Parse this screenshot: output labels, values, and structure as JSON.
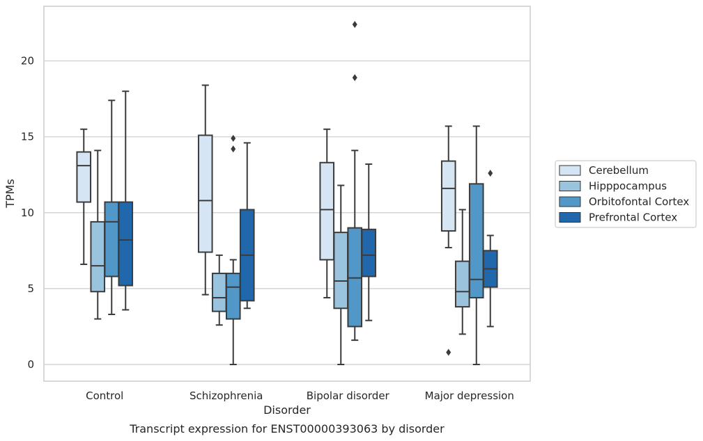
{
  "chart_data": {
    "type": "box",
    "caption": "Transcript expression for ENST00000393063 by disorder",
    "xlabel": "Disorder",
    "ylabel": "TPMs",
    "ylim": [
      -1.1,
      23.6
    ],
    "yticks": [
      0,
      5,
      10,
      15,
      20
    ],
    "grid": "horizontal",
    "legend_position": "right",
    "categories": [
      "Control",
      "Schizophrenia",
      "Bipolar disorder",
      "Major depression"
    ],
    "series": [
      {
        "name": "Cerebellum",
        "color": "#d6e5f4",
        "boxes": [
          {
            "whisker_low": 6.6,
            "q1": 10.7,
            "median": 13.1,
            "q3": 14.0,
            "whisker_high": 15.5,
            "outliers": []
          },
          {
            "whisker_low": 4.6,
            "q1": 7.4,
            "median": 10.8,
            "q3": 15.1,
            "whisker_high": 18.4,
            "outliers": []
          },
          {
            "whisker_low": 4.4,
            "q1": 6.9,
            "median": 10.2,
            "q3": 13.3,
            "whisker_high": 15.5,
            "outliers": []
          },
          {
            "whisker_low": 7.7,
            "q1": 8.8,
            "median": 11.6,
            "q3": 13.4,
            "whisker_high": 15.7,
            "outliers": [
              0.8
            ]
          }
        ]
      },
      {
        "name": "Hipppocampus",
        "color": "#9ac3de",
        "boxes": [
          {
            "whisker_low": 3.0,
            "q1": 4.8,
            "median": 6.5,
            "q3": 9.4,
            "whisker_high": 14.1,
            "outliers": []
          },
          {
            "whisker_low": 2.6,
            "q1": 3.5,
            "median": 4.4,
            "q3": 6.0,
            "whisker_high": 7.2,
            "outliers": []
          },
          {
            "whisker_low": 0.0,
            "q1": 3.7,
            "median": 5.5,
            "q3": 8.7,
            "whisker_high": 11.8,
            "outliers": []
          },
          {
            "whisker_low": 2.0,
            "q1": 3.8,
            "median": 4.8,
            "q3": 6.8,
            "whisker_high": 10.2,
            "outliers": []
          }
        ]
      },
      {
        "name": "Orbitofontal Cortex",
        "color": "#5197c8",
        "boxes": [
          {
            "whisker_low": 3.3,
            "q1": 5.8,
            "median": 9.4,
            "q3": 10.7,
            "whisker_high": 17.4,
            "outliers": []
          },
          {
            "whisker_low": 0.0,
            "q1": 3.0,
            "median": 5.1,
            "q3": 6.0,
            "whisker_high": 6.9,
            "outliers": [
              14.2,
              14.9
            ]
          },
          {
            "whisker_low": 1.6,
            "q1": 2.5,
            "median": 5.7,
            "q3": 9.0,
            "whisker_high": 14.1,
            "outliers": [
              18.9,
              22.4
            ]
          },
          {
            "whisker_low": 0.0,
            "q1": 4.4,
            "median": 5.6,
            "q3": 11.9,
            "whisker_high": 15.7,
            "outliers": []
          }
        ]
      },
      {
        "name": "Prefrontal Cortex",
        "color": "#2167ac",
        "boxes": [
          {
            "whisker_low": 3.6,
            "q1": 5.2,
            "median": 8.2,
            "q3": 10.7,
            "whisker_high": 18.0,
            "outliers": []
          },
          {
            "whisker_low": 3.7,
            "q1": 4.2,
            "median": 7.2,
            "q3": 10.2,
            "whisker_high": 14.6,
            "outliers": []
          },
          {
            "whisker_low": 2.9,
            "q1": 5.8,
            "median": 7.2,
            "q3": 8.9,
            "whisker_high": 13.2,
            "outliers": []
          },
          {
            "whisker_low": 2.5,
            "q1": 5.1,
            "median": 6.3,
            "q3": 7.5,
            "whisker_high": 8.5,
            "outliers": [
              12.6
            ]
          }
        ]
      }
    ]
  }
}
